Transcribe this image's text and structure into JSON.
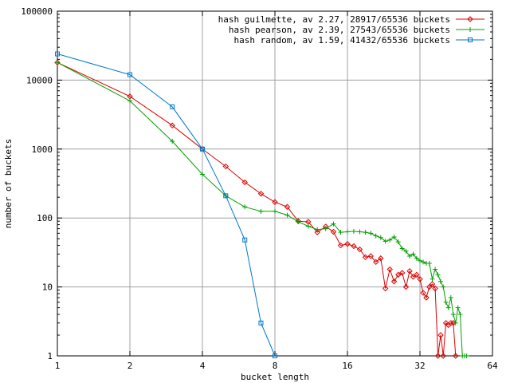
{
  "chart_data": {
    "type": "line",
    "xlabel": "bucket length",
    "ylabel": "number of buckets",
    "xscale": "log2",
    "yscale": "log10",
    "xlim": [
      1,
      64
    ],
    "ylim": [
      1,
      100000
    ],
    "x_ticks": [
      1,
      2,
      4,
      8,
      16,
      32,
      64
    ],
    "x_tick_labels": [
      "1",
      "2",
      "4",
      "8",
      "16",
      "32",
      "64"
    ],
    "y_ticks": [
      1,
      10,
      100,
      1000,
      10000,
      100000
    ],
    "y_tick_labels": [
      "1",
      "10",
      "100",
      "1000",
      "10000",
      "100000"
    ],
    "grid": true,
    "legend_position": "top-right",
    "series": [
      {
        "name": "hash guilmette, av 2.27, 28917/65536 buckets",
        "color": "#dd0000",
        "marker": "diamond",
        "x": [
          1,
          2,
          3,
          4,
          5,
          6,
          7,
          8,
          9,
          10,
          11,
          12,
          13,
          14,
          15,
          16,
          17,
          18,
          19,
          20,
          21,
          22,
          23,
          24,
          25,
          26,
          27,
          28,
          29,
          30,
          31,
          32,
          33,
          34,
          35,
          36,
          37,
          38,
          39,
          40,
          41,
          42,
          43,
          44,
          45
        ],
        "y": [
          18000,
          5800,
          2200,
          1000,
          560,
          330,
          225,
          170,
          145,
          90,
          88,
          62,
          75,
          63,
          40,
          42,
          39,
          35,
          27,
          28,
          23,
          26,
          9.5,
          18,
          12,
          15,
          16,
          10,
          17,
          14,
          15,
          13,
          8.2,
          7,
          10,
          11,
          9.5,
          1,
          2,
          1,
          3,
          2.8,
          3,
          3,
          1
        ]
      },
      {
        "name": "hash pearson, av 2.39, 27543/65536 buckets",
        "color": "#00a000",
        "marker": "plus",
        "x": [
          1,
          2,
          3,
          4,
          5,
          6,
          7,
          8,
          9,
          10,
          11,
          12,
          13,
          14,
          15,
          16,
          17,
          18,
          19,
          20,
          21,
          22,
          23,
          24,
          25,
          26,
          27,
          28,
          29,
          30,
          31,
          32,
          33,
          34,
          35,
          36,
          37,
          38,
          39,
          40,
          41,
          42,
          43,
          44,
          45,
          46,
          47,
          48,
          49,
          50
        ],
        "y": [
          18000,
          5000,
          1300,
          430,
          210,
          145,
          125,
          125,
          110,
          88,
          76,
          68,
          70,
          82,
          62,
          63,
          64,
          63,
          62,
          60,
          55,
          52,
          46,
          48,
          53,
          45,
          36,
          33,
          28,
          30,
          26,
          24,
          23,
          22,
          22,
          13,
          18,
          15,
          12,
          10,
          6,
          5,
          7,
          4,
          3,
          5,
          4,
          1,
          1,
          1
        ]
      },
      {
        "name": "hash random, av 1.59, 41432/65536 buckets",
        "color": "#0077cc",
        "marker": "square",
        "x": [
          1,
          2,
          3,
          4,
          5,
          6,
          7,
          8
        ],
        "y": [
          24000,
          12000,
          4100,
          1000,
          210,
          48,
          3,
          1
        ]
      }
    ]
  }
}
